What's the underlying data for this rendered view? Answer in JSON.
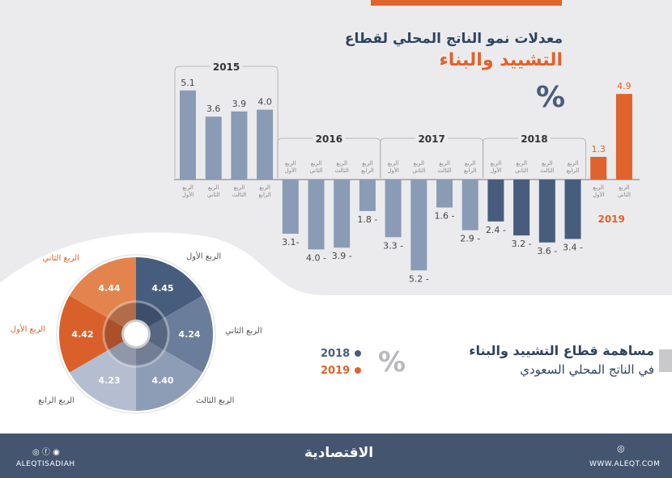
{
  "header": {
    "title_line1": "معدلات نمو الناتج المحلي لقطاع",
    "title_line2": "التشييد والبناء",
    "unit": "%"
  },
  "chart_data": [
    {
      "type": "bar",
      "title": "معدلات نمو الناتج المحلي لقطاع التشييد والبناء",
      "unit": "%",
      "groups": [
        {
          "year": "2015",
          "quarters": [
            "الربع الأول",
            "الربع الثاني",
            "الربع الثالث",
            "الربع الرابع"
          ],
          "values": [
            5.1,
            3.6,
            3.9,
            4.0
          ],
          "labels": [
            "5.1",
            "3.6",
            "3.9",
            "4.0"
          ],
          "color": "#8a9bb6"
        },
        {
          "year": "2016",
          "quarters": [
            "الربع الأول",
            "الربع الثاني",
            "الربع الثالث",
            "الربع الرابع"
          ],
          "values": [
            -3.1,
            -4.0,
            -3.9,
            -1.8
          ],
          "labels": [
            "3.1-",
            "4.0 -",
            "3.9 -",
            "1.8 -"
          ],
          "color": "#8a9bb6"
        },
        {
          "year": "2017",
          "quarters": [
            "الربع الأول",
            "الربع الثاني",
            "الربع الثالث",
            "الربع الرابع"
          ],
          "values": [
            -3.3,
            -5.2,
            -1.6,
            -2.9
          ],
          "labels": [
            "3.3 -",
            "5.2 -",
            "1.6 -",
            "2.9 -"
          ],
          "color": "#8a9bb6"
        },
        {
          "year": "2018",
          "quarters": [
            "الربع الأول",
            "الربع الثاني",
            "الربع الثالث",
            "الربع الرابع"
          ],
          "values": [
            -2.4,
            -3.2,
            -3.6,
            -3.4
          ],
          "labels": [
            "2.4 -",
            "3.2 -",
            "3.6 -",
            "3.4 -"
          ],
          "color": "#475d7e"
        },
        {
          "year": "2019",
          "quarters": [
            "الربع الأول",
            "الربع الثاني"
          ],
          "values": [
            1.3,
            4.9
          ],
          "labels": [
            "1.3",
            "4.9"
          ],
          "color": "#e0622c"
        }
      ]
    },
    {
      "type": "pie",
      "title": "مساهمة قطاع التشييد والبناء في الناتج المحلي السعودي",
      "unit": "%",
      "slices": [
        {
          "series": "2018",
          "label": "الربع الأول",
          "value": 4.45,
          "text": "4.45",
          "color": "#475d7e"
        },
        {
          "series": "2018",
          "label": "الربع الثاني",
          "value": 4.24,
          "text": "4.24",
          "color": "#6a7d9b"
        },
        {
          "series": "2018",
          "label": "الربع الثالث",
          "value": 4.4,
          "text": "4.40",
          "color": "#8e9db6"
        },
        {
          "series": "2018",
          "label": "الربع الرابع",
          "value": 4.23,
          "text": "4.23",
          "color": "#b4bed0"
        },
        {
          "series": "2019",
          "label": "الربع الأول",
          "value": 4.42,
          "text": "4.42",
          "color": "#d9602a"
        },
        {
          "series": "2019",
          "label": "الربع الثاني",
          "value": 4.44,
          "text": "4.44",
          "color": "#e3844f"
        }
      ]
    }
  ],
  "contribution": {
    "line1": "مساهمة قطاع التشييد والبناء",
    "line2": "في الناتج المحلي السعودي",
    "unit": "%",
    "legend": [
      {
        "label": "2018",
        "color": "#475d7e"
      },
      {
        "label": "2019",
        "color": "#e0622c"
      }
    ]
  },
  "footer": {
    "social_handle": "ALEQTISADIAH",
    "logo": "الاقتصادية",
    "website": "WWW.ALEQT.COM",
    "icons": [
      "instagram-icon",
      "facebook-icon",
      "twitter-icon",
      "globe-icon"
    ]
  }
}
